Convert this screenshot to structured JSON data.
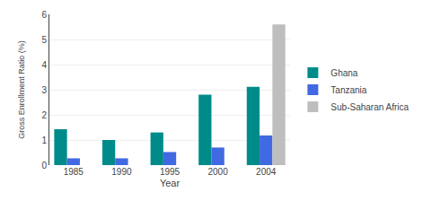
{
  "chart_data": {
    "type": "bar",
    "categories": [
      "1985",
      "1990",
      "1995",
      "2000",
      "2004"
    ],
    "series": [
      {
        "name": "Ghana",
        "color": "#008B8B",
        "values": [
          1.43,
          1.0,
          1.3,
          2.8,
          3.12
        ]
      },
      {
        "name": "Tanzania",
        "color": "#4169E1",
        "values": [
          0.27,
          0.27,
          0.52,
          0.7,
          1.18
        ]
      },
      {
        "name": "Sub-Saharan Africa",
        "color": "#BEBEBE",
        "values": [
          null,
          null,
          null,
          null,
          5.6
        ]
      }
    ],
    "xlabel": "Year",
    "ylabel": "Gross Enrollment Ratio (%)",
    "ylim": [
      0,
      6
    ],
    "yticks": [
      0,
      1,
      2,
      3,
      4,
      5,
      6
    ],
    "grid": true,
    "legend": "right"
  }
}
